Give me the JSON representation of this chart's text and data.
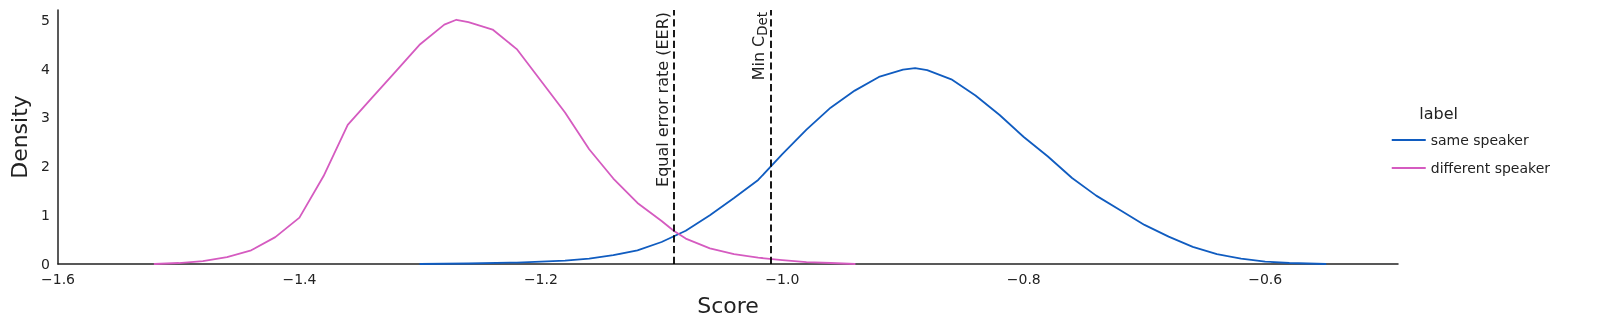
{
  "chart_data": {
    "type": "line",
    "xlabel": "Score",
    "ylabel": "Density",
    "legend_title": "label",
    "legend": "right",
    "marker": "none",
    "line_style": "solid",
    "grid": false,
    "xlim": [
      -1.6,
      -0.49
    ],
    "xticks": [
      {
        "value": -1.6,
        "label": "−1.6"
      },
      {
        "value": -1.4,
        "label": "−1.4"
      },
      {
        "value": -1.2,
        "label": "−1.2"
      },
      {
        "value": -1.0,
        "label": "−1.0"
      },
      {
        "value": -0.8,
        "label": "−0.8"
      },
      {
        "value": -0.6,
        "label": "−0.6"
      }
    ],
    "ylim": [
      0,
      5.2
    ],
    "yticks": [
      0,
      1,
      2,
      3,
      4,
      5
    ],
    "series": [
      {
        "name": "same speaker",
        "color": "#105cc0",
        "x": [
          -1.3,
          -1.26,
          -1.22,
          -1.18,
          -1.16,
          -1.14,
          -1.12,
          -1.1,
          -1.08,
          -1.06,
          -1.04,
          -1.02,
          -1.0,
          -0.98,
          -0.96,
          -0.94,
          -0.92,
          -0.9,
          -0.89,
          -0.88,
          -0.86,
          -0.84,
          -0.82,
          -0.8,
          -0.78,
          -0.76,
          -0.74,
          -0.72,
          -0.7,
          -0.68,
          -0.66,
          -0.64,
          -0.62,
          -0.6,
          -0.58,
          -0.55
        ],
        "values": [
          0,
          0.01,
          0.03,
          0.07,
          0.11,
          0.18,
          0.28,
          0.45,
          0.68,
          1.0,
          1.35,
          1.72,
          2.25,
          2.75,
          3.2,
          3.55,
          3.83,
          3.98,
          4.01,
          3.97,
          3.78,
          3.45,
          3.05,
          2.6,
          2.2,
          1.76,
          1.4,
          1.1,
          0.8,
          0.56,
          0.35,
          0.2,
          0.11,
          0.05,
          0.02,
          0
        ]
      },
      {
        "name": "different speaker",
        "color": "#d55bc0",
        "x": [
          -1.52,
          -1.5,
          -1.48,
          -1.46,
          -1.44,
          -1.42,
          -1.4,
          -1.38,
          -1.36,
          -1.34,
          -1.32,
          -1.3,
          -1.28,
          -1.27,
          -1.26,
          -1.24,
          -1.22,
          -1.2,
          -1.18,
          -1.16,
          -1.14,
          -1.12,
          -1.1,
          -1.09,
          -1.08,
          -1.06,
          -1.04,
          -1.02,
          -1.0,
          -0.98,
          -0.96,
          -0.94
        ],
        "values": [
          0,
          0.02,
          0.06,
          0.14,
          0.28,
          0.55,
          0.95,
          1.8,
          2.85,
          3.4,
          3.95,
          4.5,
          4.9,
          5.0,
          4.95,
          4.8,
          4.4,
          3.75,
          3.1,
          2.35,
          1.75,
          1.25,
          0.88,
          0.68,
          0.52,
          0.32,
          0.2,
          0.13,
          0.08,
          0.04,
          0.02,
          0
        ]
      }
    ],
    "ref_lines": [
      {
        "axis": "x",
        "value": -1.09,
        "label": "Equal error rate (EER)",
        "color": "#000000",
        "line_style": "dashed"
      },
      {
        "axis": "x",
        "value": -1.01,
        "label": "Min C$_{Det}$",
        "color": "#000000",
        "line_style": "dashed"
      }
    ]
  }
}
